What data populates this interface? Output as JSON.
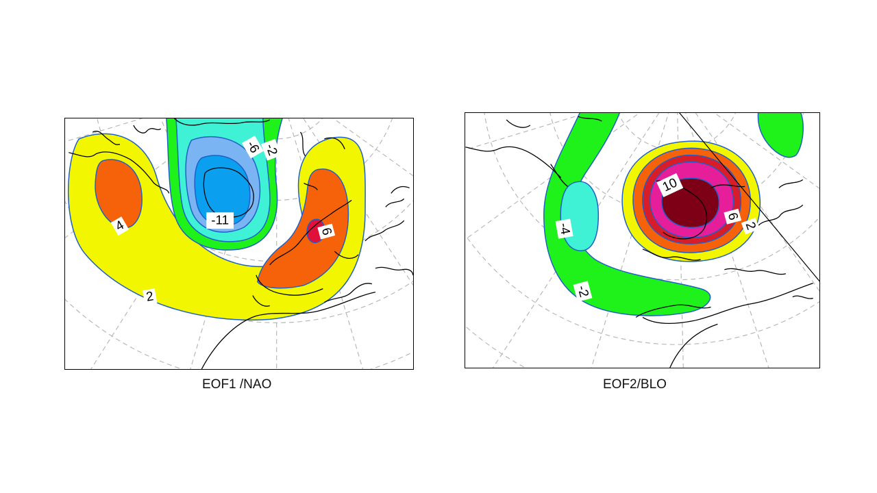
{
  "panels": [
    {
      "caption": "EOF1 /NAO",
      "contour_labels": [
        "4",
        "2",
        "-11",
        "-6",
        "-2",
        "6"
      ]
    },
    {
      "caption": "EOF2/BLO",
      "contour_labels": [
        "10",
        "6",
        "2",
        "-4",
        "-2"
      ]
    }
  ],
  "colors": {
    "yellow": "#f2f700",
    "orange": "#f5620a",
    "red": "#d81d2a",
    "magenta": "#e61e9a",
    "darkred": "#7d0017",
    "green": "#1ef21a",
    "cyan": "#3ff2d6",
    "lightblue": "#7ab4f2",
    "blue": "#0aa0ef",
    "contour_line": "#1e5fc8",
    "grid": "#b8b8b8"
  }
}
